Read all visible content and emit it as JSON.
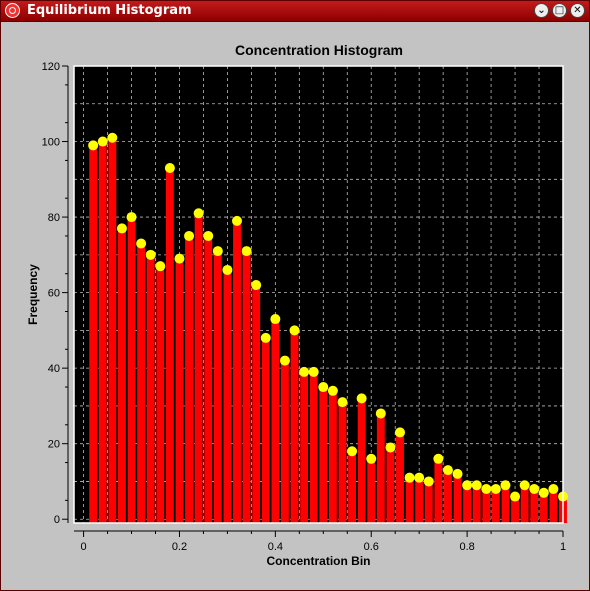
{
  "window": {
    "title": "Equilibrium Histogram",
    "controls": {
      "minimize": "⌄",
      "maximize": "□",
      "close": "✕"
    }
  },
  "chart_data": {
    "type": "bar",
    "title": "Concentration Histogram",
    "xlabel": "Concentration Bin",
    "ylabel": "Frequency",
    "xlim": [
      -0.02,
      1.0
    ],
    "ylim": [
      -1,
      120
    ],
    "xticks": [
      0,
      0.2,
      0.4,
      0.6,
      0.8,
      1
    ],
    "xtick_labels": [
      "0",
      "0.2",
      "0.4",
      "0.6",
      "0.8",
      "1"
    ],
    "yticks": [
      0,
      20,
      40,
      60,
      80,
      100,
      120
    ],
    "ytick_labels": [
      "0",
      "20",
      "40",
      "60",
      "80",
      "100",
      "120"
    ],
    "grid": true,
    "plot_background": "#000000",
    "bar_color": "#ff0000",
    "marker_color": "#ffff00",
    "grid_color": "#bbbbbb",
    "series": [
      {
        "x": [
          0.02,
          0.04,
          0.06,
          0.08,
          0.1,
          0.12,
          0.14,
          0.16,
          0.18,
          0.2,
          0.22,
          0.24,
          0.26,
          0.28,
          0.3,
          0.32,
          0.34,
          0.36,
          0.38,
          0.4,
          0.42,
          0.44,
          0.46,
          0.48,
          0.5,
          0.52,
          0.54,
          0.56,
          0.58,
          0.6,
          0.62,
          0.64,
          0.66,
          0.68,
          0.7,
          0.72,
          0.74,
          0.76,
          0.78,
          0.8,
          0.82,
          0.84,
          0.86,
          0.88,
          0.9,
          0.92,
          0.94,
          0.96,
          0.98,
          1.0
        ],
        "values": [
          99,
          100,
          101,
          77,
          80,
          73,
          70,
          67,
          93,
          69,
          75,
          81,
          75,
          71,
          66,
          79,
          71,
          62,
          48,
          53,
          42,
          50,
          39,
          39,
          35,
          34,
          31,
          18,
          32,
          16,
          28,
          19,
          23,
          11,
          11,
          10,
          16,
          13,
          12,
          9,
          9,
          8,
          8,
          9,
          6,
          9,
          8,
          7,
          8,
          6
        ]
      }
    ]
  }
}
